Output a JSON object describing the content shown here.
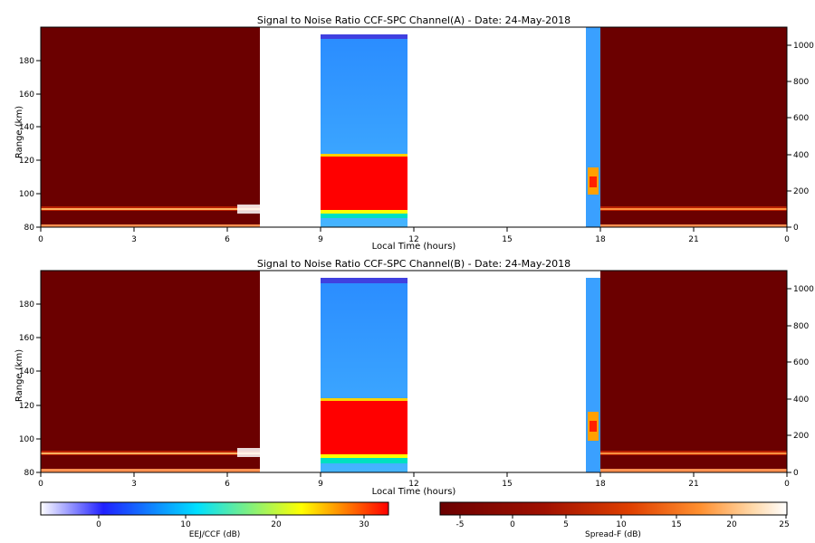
{
  "chart_data": [
    {
      "type": "heatmap",
      "title": "Signal to Noise Ratio CCF-SPC Channel(A) - Date: 24-May-2018",
      "xlabel": "Local Time (hours)",
      "ylabel": "Range (km)",
      "xlim": [
        0,
        24
      ],
      "ylim": [
        80,
        200
      ],
      "xticks": [
        "0",
        "3",
        "6",
        "9",
        "12",
        "15",
        "18",
        "21",
        "0"
      ],
      "yticks": [
        "80",
        "100",
        "120",
        "140",
        "160",
        "180"
      ],
      "y2lim": [
        0,
        1100
      ],
      "y2ticks": [
        "0",
        "200",
        "400",
        "600",
        "800",
        "1000"
      ],
      "segments": [
        {
          "mode": "Spread-F",
          "x": [
            0,
            7.0
          ],
          "background_db": -8,
          "echo_layer_km": 91,
          "echo_db": 12
        },
        {
          "mode": "EEJ/CCF",
          "x": [
            9.0,
            11.8
          ],
          "background_db": 5,
          "strong_echo_km": [
            90,
            123
          ],
          "strong_db": 32,
          "top_band_km": [
            193,
            196
          ]
        },
        {
          "mode": "EEJ/CCF",
          "x": [
            17.5,
            18.0
          ],
          "background_db": 5,
          "echo_km": [
            100,
            115
          ],
          "echo_db": 25
        },
        {
          "mode": "Spread-F",
          "x": [
            18.0,
            24.0
          ],
          "background_db": -8,
          "echo_layer_km": 91,
          "echo_db": 10
        }
      ]
    },
    {
      "type": "heatmap",
      "title": "Signal to Noise Ratio CCF-SPC Channel(B) - Date: 24-May-2018",
      "xlabel": "Local Time (hours)",
      "ylabel": "Range (km)",
      "xlim": [
        0,
        24
      ],
      "ylim": [
        80,
        200
      ],
      "xticks": [
        "0",
        "3",
        "6",
        "9",
        "12",
        "15",
        "18",
        "21",
        "0"
      ],
      "yticks": [
        "80",
        "100",
        "120",
        "140",
        "160",
        "180"
      ],
      "y2lim": [
        0,
        1100
      ],
      "y2ticks": [
        "0",
        "200",
        "400",
        "600",
        "800",
        "1000"
      ],
      "segments": [
        {
          "mode": "Spread-F",
          "x": [
            0,
            7.0
          ],
          "background_db": -8,
          "echo_layer_km": 91,
          "echo_db": 12
        },
        {
          "mode": "EEJ/CCF",
          "x": [
            9.0,
            11.8
          ],
          "background_db": 5,
          "strong_echo_km": [
            90,
            123
          ],
          "strong_db": 32,
          "top_band_km": [
            193,
            196
          ]
        },
        {
          "mode": "EEJ/CCF",
          "x": [
            17.5,
            18.0
          ],
          "background_db": 5,
          "echo_km": [
            100,
            115
          ],
          "echo_db": 25
        },
        {
          "mode": "Spread-F",
          "x": [
            18.0,
            24.0
          ],
          "background_db": -8,
          "echo_layer_km": 91,
          "echo_db": 10
        }
      ]
    }
  ],
  "colorbars": [
    {
      "label": "EEJ/CCF (dB)",
      "range": [
        -7,
        33
      ],
      "ticks": [
        "0",
        "10",
        "20",
        "30"
      ],
      "tick_values": [
        0,
        10,
        20,
        30
      ],
      "colors": [
        "#ffffff",
        "#2020ff",
        "#00e0ff",
        "#ffff00",
        "#ff0000"
      ]
    },
    {
      "label": "Spread-F (dB)",
      "range": [
        -8,
        25
      ],
      "ticks": [
        "-5",
        "0",
        "5",
        "10",
        "15",
        "20",
        "25"
      ],
      "tick_values": [
        -5,
        0,
        5,
        10,
        15,
        20,
        25
      ],
      "colors": [
        "#6b0000",
        "#a01000",
        "#e04000",
        "#ff9030",
        "#ffd8a8",
        "#ffffff"
      ]
    }
  ],
  "colors": {
    "spreadf_background": "#6b0000",
    "ccf_background": "#3aa0ff",
    "ccf_strong": "#ff0000",
    "ccf_top_band": "#4040e0"
  }
}
